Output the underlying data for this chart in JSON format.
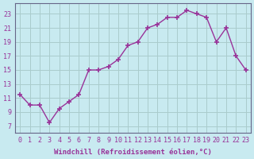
{
  "x": [
    0,
    1,
    2,
    3,
    4,
    5,
    6,
    7,
    8,
    9,
    10,
    11,
    12,
    13,
    14,
    15,
    16,
    17,
    18,
    19,
    20,
    21,
    22,
    23
  ],
  "y": [
    11.5,
    10.0,
    10.0,
    7.5,
    9.5,
    10.5,
    11.5,
    15.0,
    15.0,
    15.5,
    16.5,
    18.5,
    19.0,
    21.0,
    21.5,
    22.5,
    22.5,
    23.5,
    23.0,
    22.5,
    19.0,
    21.0,
    17.0,
    15.0
  ],
  "line_color": "#993399",
  "marker": "+",
  "marker_size": 4,
  "marker_lw": 1.2,
  "bg_color": "#c8eaf0",
  "grid_color": "#aacccc",
  "ylabel_ticks": [
    7,
    9,
    11,
    13,
    15,
    17,
    19,
    21,
    23
  ],
  "ylim": [
    6.0,
    24.5
  ],
  "xlim": [
    -0.5,
    23.5
  ],
  "xlabel": "Windchill (Refroidissement éolien,°C)",
  "xlabel_fontsize": 6.5,
  "tick_fontsize": 6.0,
  "line_width": 1.0,
  "spine_color": "#666688"
}
